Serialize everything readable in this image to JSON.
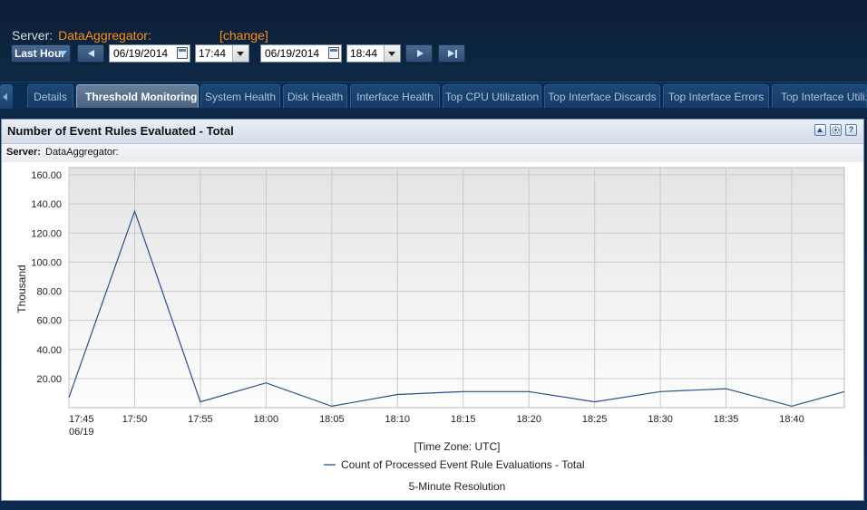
{
  "header": {
    "server_label": "Server:",
    "server_name": "DataAggregator:",
    "change_link": "[change]"
  },
  "controls": {
    "range": "Last Hour",
    "start_date": "06/19/2014",
    "start_time": "17:44",
    "end_date": "06/19/2014",
    "end_time": "18:44"
  },
  "tabs": [
    {
      "label": "Details"
    },
    {
      "label": "Threshold Monitoring"
    },
    {
      "label": "System Health"
    },
    {
      "label": "Disk Health"
    },
    {
      "label": "Interface Health"
    },
    {
      "label": "Top CPU Utilization"
    },
    {
      "label": "Top Interface Discards"
    },
    {
      "label": "Top Interface Errors"
    },
    {
      "label": "Top Interface Utiliza"
    }
  ],
  "panel": {
    "title": "Number of Event Rules Evaluated - Total",
    "server_label": "Server:",
    "server_name": "DataAggregator:"
  },
  "chart_data": {
    "type": "line",
    "title": "",
    "ylabel": "Thousand",
    "xlabel": "[Time Zone: UTC]",
    "footnote": "5-Minute Resolution",
    "first_tick_sublabel": "06/19",
    "ylim": [
      0,
      165
    ],
    "yticks": [
      "20.00",
      "40.00",
      "60.00",
      "80.00",
      "100.00",
      "120.00",
      "140.00",
      "160.00"
    ],
    "x": [
      "17:45",
      "17:50",
      "17:55",
      "18:00",
      "18:05",
      "18:10",
      "18:15",
      "18:20",
      "18:25",
      "18:30",
      "18:35",
      "18:40",
      "18:44"
    ],
    "xticks": [
      "17:45",
      "17:50",
      "17:55",
      "18:00",
      "18:05",
      "18:10",
      "18:15",
      "18:20",
      "18:25",
      "18:30",
      "18:35",
      "18:40"
    ],
    "series": [
      {
        "name": "Count of Processed Event Rule Evaluations - Total",
        "color": "#2b4f8c",
        "values": [
          7,
          135,
          4,
          17,
          1,
          9,
          11,
          11,
          4,
          11,
          13,
          1,
          11
        ]
      }
    ],
    "grid": true,
    "legend_position": "bottom"
  }
}
